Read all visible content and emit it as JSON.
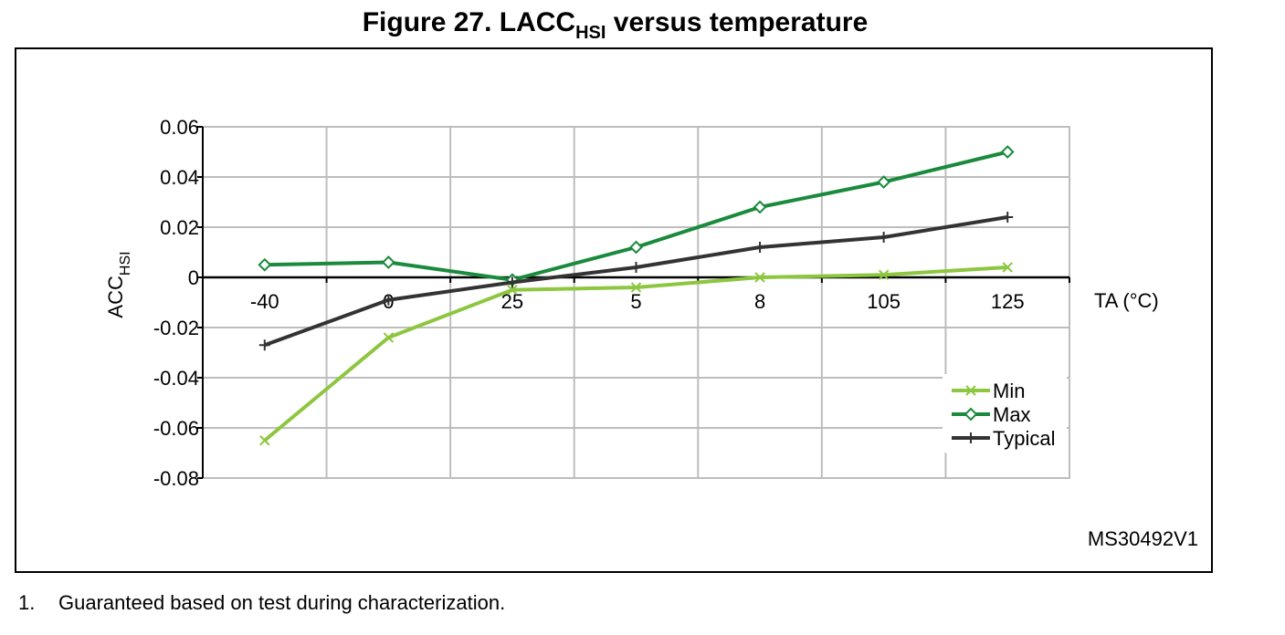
{
  "figure": {
    "title_prefix": "Figure 27. LACC",
    "title_sub": "HSI",
    "title_suffix": " versus temperature",
    "ref_code": "MS30492V1"
  },
  "footnote": {
    "number": "1.",
    "text": "Guaranteed based on test during characterization."
  },
  "chart_data": {
    "type": "line",
    "categories": [
      "-40",
      "0",
      "25",
      "5",
      "8",
      "105",
      "125"
    ],
    "xlabel": "TA (°C)",
    "ylabel_main": "ACC",
    "ylabel_sub": "HSI",
    "ylim": [
      -0.08,
      0.06
    ],
    "yticks": [
      0.06,
      0.04,
      0.02,
      0,
      -0.02,
      -0.04,
      -0.06,
      -0.08
    ],
    "ytick_labels": [
      "0.06",
      "0.04",
      "0.02",
      "0",
      "-0.02",
      "-0.04",
      "-0.06",
      "-0.08"
    ],
    "grid": true,
    "legend": "right",
    "series": [
      {
        "name": "Min",
        "color": "#8dc63f",
        "marker": "x",
        "values": [
          -0.065,
          -0.024,
          -0.005,
          -0.004,
          0.0,
          0.001,
          0.004
        ]
      },
      {
        "name": "Max",
        "color": "#1a8a3c",
        "marker": "diamond",
        "values": [
          0.005,
          0.006,
          -0.001,
          0.012,
          0.028,
          0.038,
          0.05
        ]
      },
      {
        "name": "Typical",
        "color": "#333333",
        "marker": "plus",
        "values": [
          -0.027,
          -0.009,
          -0.002,
          0.004,
          0.012,
          0.016,
          0.024
        ]
      }
    ]
  }
}
